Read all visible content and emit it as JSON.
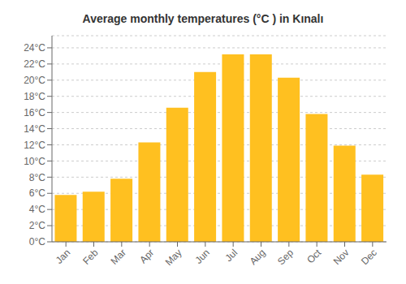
{
  "chart_data": {
    "type": "bar",
    "title": "Average monthly temperatures (°C ) in Kınalı",
    "categories": [
      "Jan",
      "Feb",
      "Mar",
      "Apr",
      "May",
      "Jun",
      "Jul",
      "Aug",
      "Sep",
      "Oct",
      "Nov",
      "Dec"
    ],
    "values": [
      5.8,
      6.2,
      7.8,
      12.3,
      16.6,
      21.0,
      23.2,
      23.2,
      20.3,
      15.8,
      11.9,
      8.3
    ],
    "color": "#FFC020",
    "ylim": [
      0,
      25.5
    ],
    "yticks": [
      {
        "value": 0,
        "label": "0°C"
      },
      {
        "value": 2,
        "label": "2°C"
      },
      {
        "value": 4,
        "label": "4°C"
      },
      {
        "value": 6,
        "label": "6°C"
      },
      {
        "value": 8,
        "label": "8°C"
      },
      {
        "value": 10,
        "label": "10°C"
      },
      {
        "value": 12,
        "label": "12°C"
      },
      {
        "value": 14,
        "label": "14°C"
      },
      {
        "value": 16,
        "label": "16°C"
      },
      {
        "value": 18,
        "label": "18°C"
      },
      {
        "value": 20,
        "label": "20°C"
      },
      {
        "value": 22,
        "label": "22°C"
      },
      {
        "value": 24,
        "label": "24°C"
      }
    ],
    "grid": true
  }
}
